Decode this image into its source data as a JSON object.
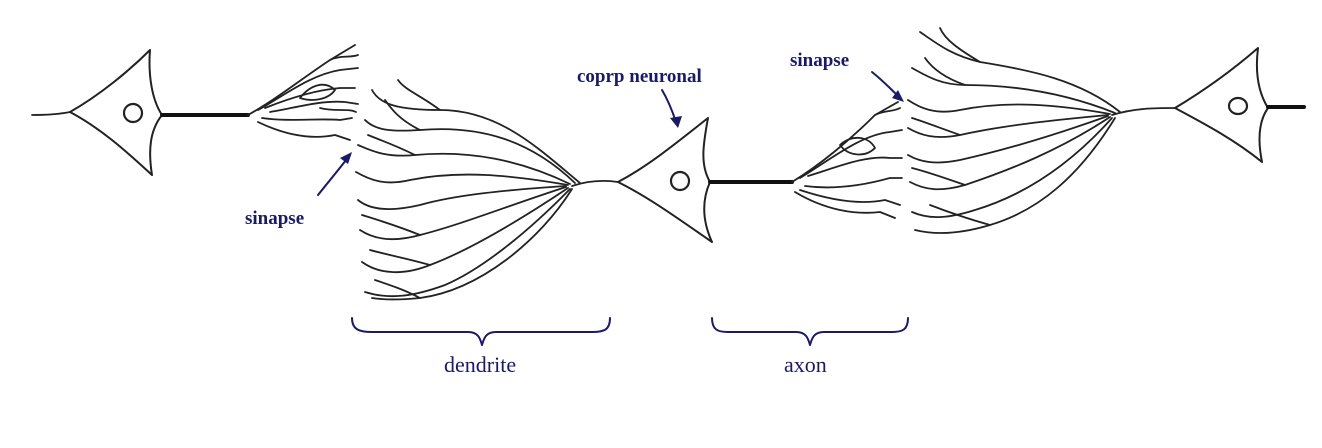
{
  "labels": {
    "cell_body": "coprp neuronal",
    "synapse_left": "sinapse",
    "synapse_right": "sinapse",
    "dendrite": "dendrite",
    "axon": "axon"
  },
  "colors": {
    "label_text": "#1a1a66",
    "line": "#222222",
    "background": "#ffffff"
  }
}
